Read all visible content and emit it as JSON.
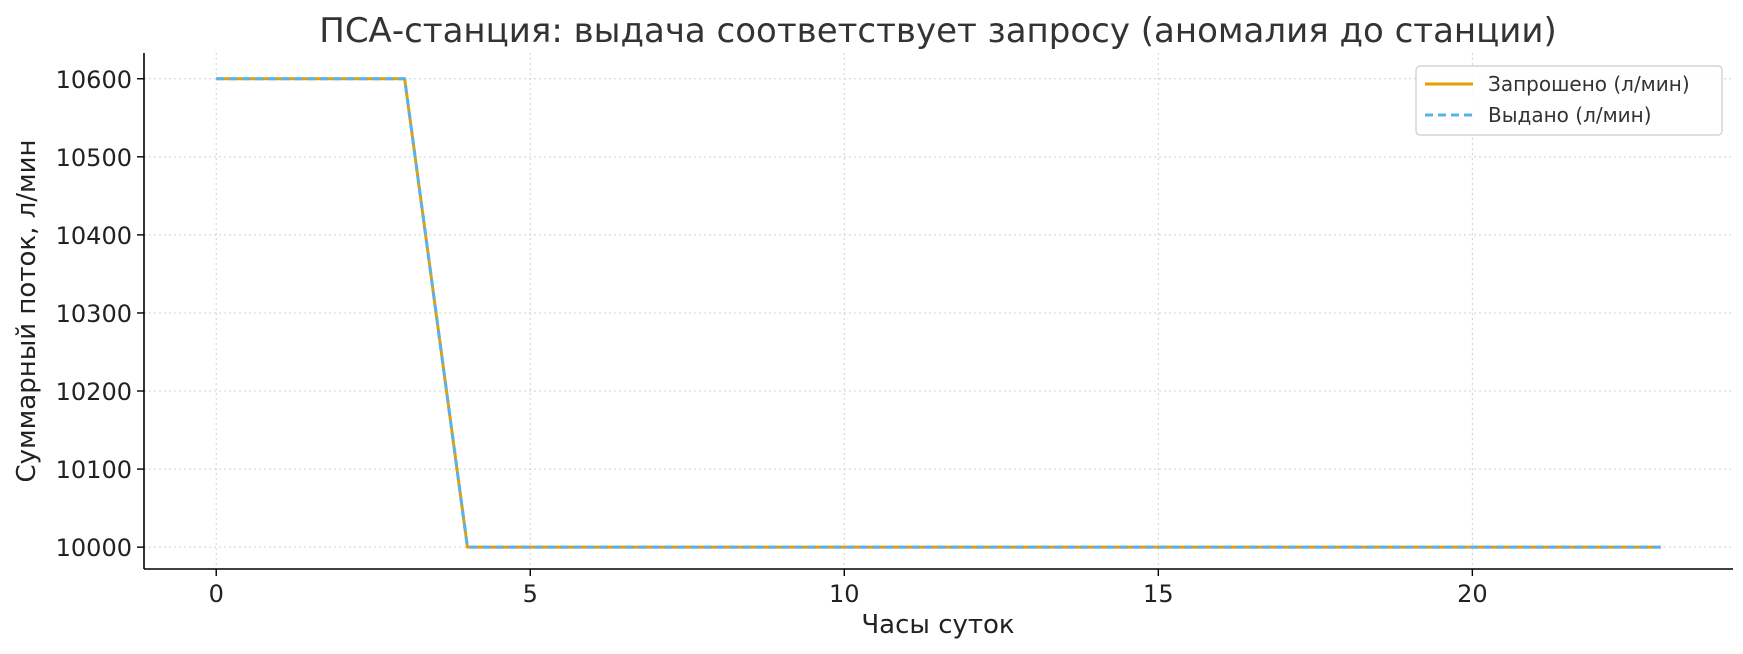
{
  "chart_data": {
    "type": "line",
    "title": "ПСА-станция: выдача соответствует запросу (аномалия до станции)",
    "xlabel": "Часы суток",
    "ylabel": "Суммарный поток, л/мин",
    "x": [
      0,
      1,
      2,
      3,
      4,
      5,
      6,
      7,
      8,
      9,
      10,
      11,
      12,
      13,
      14,
      15,
      16,
      17,
      18,
      19,
      20,
      21,
      22,
      23
    ],
    "xlim": [
      -1.15,
      24.15
    ],
    "ylim": [
      9972,
      10633
    ],
    "xticks": [
      0,
      5,
      10,
      15,
      20
    ],
    "yticks": [
      10000,
      10100,
      10200,
      10300,
      10400,
      10500,
      10600
    ],
    "grid": true,
    "legend_position": "top-right",
    "series": [
      {
        "name": "Запрошено (л/мин)",
        "color": "#E69F00",
        "style": "solid",
        "values": [
          10600,
          10600,
          10600,
          10600,
          10000,
          10000,
          10000,
          10000,
          10000,
          10000,
          10000,
          10000,
          10000,
          10000,
          10000,
          10000,
          10000,
          10000,
          10000,
          10000,
          10000,
          10000,
          10000,
          10000
        ]
      },
      {
        "name": "Выдано (л/мин)",
        "color": "#56B4E9",
        "style": "dashed",
        "values": [
          10600,
          10600,
          10600,
          10600,
          10000,
          10000,
          10000,
          10000,
          10000,
          10000,
          10000,
          10000,
          10000,
          10000,
          10000,
          10000,
          10000,
          10000,
          10000,
          10000,
          10000,
          10000,
          10000,
          10000
        ]
      }
    ]
  }
}
